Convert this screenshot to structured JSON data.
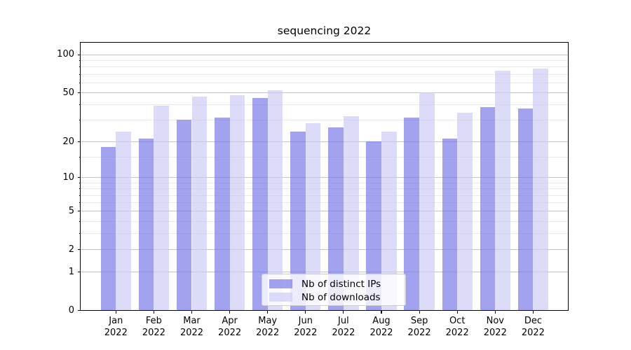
{
  "title": "sequencing 2022",
  "chart_data": {
    "type": "bar",
    "title": "sequencing 2022",
    "categories": [
      "Jan",
      "Feb",
      "Mar",
      "Apr",
      "May",
      "Jun",
      "Jul",
      "Aug",
      "Sep",
      "Oct",
      "Nov",
      "Dec"
    ],
    "category_year": "2022",
    "series": [
      {
        "name": "Nb of distinct IPs",
        "color": "rgba(118,118,232,0.68)",
        "values": [
          18,
          21,
          30,
          31,
          45,
          24,
          26,
          20,
          31,
          21,
          38,
          37
        ]
      },
      {
        "name": "Nb of downloads",
        "color": "rgba(203,203,246,0.68)",
        "values": [
          24,
          39,
          46,
          47,
          52,
          28,
          32,
          24,
          50,
          34,
          74,
          77
        ]
      }
    ],
    "yscale": "log1p",
    "ylim": [
      0,
      125
    ],
    "yticks_major": [
      0,
      1,
      2,
      5,
      10,
      20,
      50,
      100
    ],
    "yticks_minor": [
      3,
      4,
      6,
      7,
      8,
      9,
      15,
      30,
      40,
      60,
      70,
      80,
      90
    ],
    "xlabel": "",
    "ylabel": "",
    "grid": true,
    "legend_position": "lower center"
  },
  "colors": {
    "grid_major": "#c3c3c3",
    "grid_minor": "#eaeaea",
    "axis": "#000000",
    "legend_border": "#cccccc",
    "legend_bg": "rgba(255,255,255,0.8)"
  }
}
